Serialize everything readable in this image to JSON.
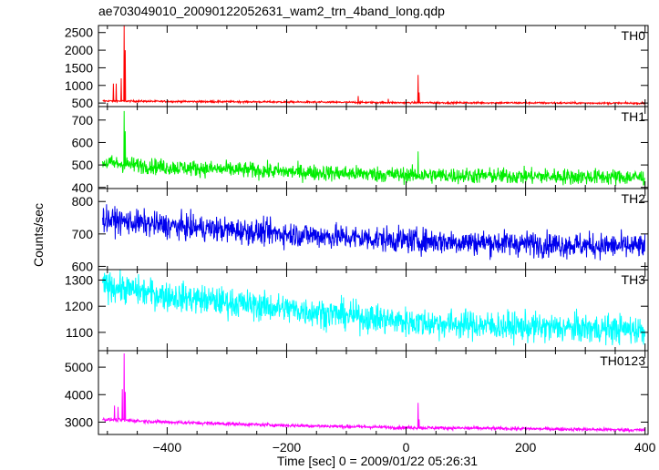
{
  "chart_data": {
    "type": "line",
    "title": "ae703049010_20090122052631_wam2_trn_4band_long.qdp",
    "xlabel": "Time [sec] 0 = 2009/01/22 05:26:31",
    "ylabel": "Counts/sec",
    "xlim": [
      -515,
      405
    ],
    "xticks": [
      -400,
      -200,
      0,
      200,
      400
    ],
    "grid": false,
    "series": [
      {
        "name": "TH0",
        "color": "#ff0000",
        "ylim": [
          400,
          2700
        ],
        "yticks": [
          500,
          1000,
          1500,
          2000,
          2500
        ],
        "baseline": [
          [
            -508,
            560
          ],
          [
            -400,
            545
          ],
          [
            -200,
            530
          ],
          [
            0,
            510
          ],
          [
            200,
            505
          ],
          [
            400,
            495
          ]
        ],
        "noise": 25,
        "spikes": [
          [
            -490,
            1050
          ],
          [
            -485,
            1050
          ],
          [
            -477,
            1200
          ],
          [
            -472,
            2700
          ],
          [
            -470,
            2000
          ],
          [
            -80,
            700
          ],
          [
            -30,
            620
          ],
          [
            20,
            1300
          ],
          [
            22,
            800
          ]
        ]
      },
      {
        "name": "TH1",
        "color": "#00ee00",
        "ylim": [
          395,
          760
        ],
        "yticks": [
          400,
          500,
          600,
          700
        ],
        "baseline": [
          [
            -508,
            510
          ],
          [
            -400,
            490
          ],
          [
            -200,
            470
          ],
          [
            0,
            455
          ],
          [
            200,
            450
          ],
          [
            400,
            445
          ]
        ],
        "noise": 35,
        "spikes": [
          [
            -472,
            740
          ],
          [
            -470,
            650
          ],
          [
            20,
            560
          ]
        ]
      },
      {
        "name": "TH2",
        "color": "#0000ee",
        "ylim": [
          590,
          840
        ],
        "yticks": [
          600,
          700,
          800
        ],
        "baseline": [
          [
            -508,
            745
          ],
          [
            -400,
            725
          ],
          [
            -200,
            700
          ],
          [
            0,
            680
          ],
          [
            200,
            670
          ],
          [
            400,
            660
          ]
        ],
        "noise": 38,
        "spikes": []
      },
      {
        "name": "TH3",
        "color": "#00ffff",
        "ylim": [
          1030,
          1340
        ],
        "yticks": [
          1100,
          1200,
          1300
        ],
        "baseline": [
          [
            -508,
            1280
          ],
          [
            -400,
            1240
          ],
          [
            -200,
            1190
          ],
          [
            0,
            1140
          ],
          [
            200,
            1120
          ],
          [
            400,
            1110
          ]
        ],
        "noise": 55,
        "spikes": []
      },
      {
        "name": "TH0123",
        "color": "#ff00ff",
        "ylim": [
          2550,
          5600
        ],
        "yticks": [
          3000,
          4000,
          5000
        ],
        "baseline": [
          [
            -508,
            3100
          ],
          [
            -400,
            3000
          ],
          [
            -200,
            2880
          ],
          [
            0,
            2800
          ],
          [
            200,
            2760
          ],
          [
            400,
            2710
          ]
        ],
        "noise": 60,
        "spikes": [
          [
            -488,
            3600
          ],
          [
            -482,
            3550
          ],
          [
            -475,
            4200
          ],
          [
            -472,
            5500
          ],
          [
            -470,
            4100
          ],
          [
            20,
            3700
          ],
          [
            22,
            3100
          ]
        ]
      }
    ]
  }
}
